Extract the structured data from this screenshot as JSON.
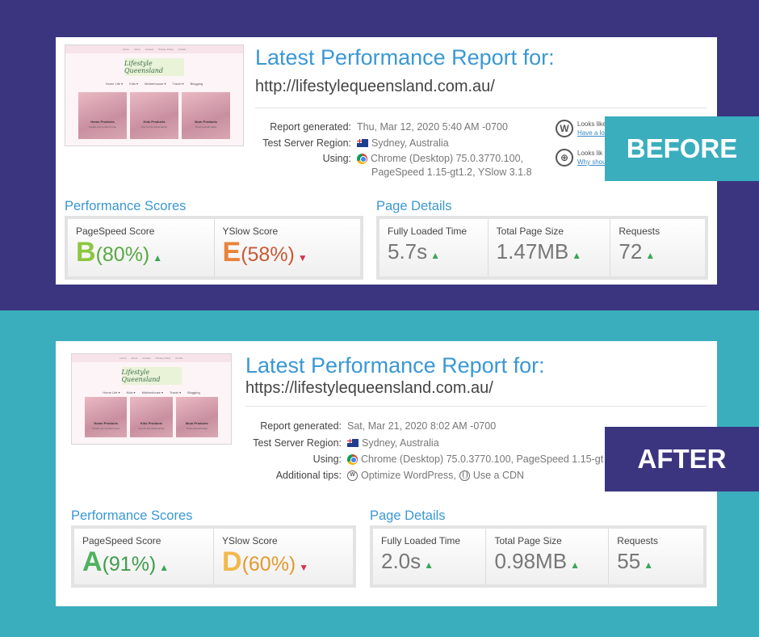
{
  "before": {
    "badge": "BEFORE",
    "title": "Latest Performance Report for:",
    "url": "http://lifestylequeensland.com.au/",
    "thumbnail": {
      "logo": "Lifestyle Queensland",
      "nav": [
        "Home",
        "About",
        "Contact",
        "Privacy Policy",
        "Cookie"
      ],
      "menu": [
        "Home Life ▾",
        "Kids ▾",
        "Motherhouse ▾",
        "Travel ▾",
        "Blogging"
      ],
      "tiles": [
        {
          "title": "Home Products",
          "desc": "Create your perfect home"
        },
        {
          "title": "Kids Products",
          "desc": "Fun for the whole family"
        },
        {
          "title": "Mum Products",
          "desc": "Treat yourself today"
        }
      ]
    },
    "meta": {
      "report_label": "Report generated:",
      "report_value": "Thu, Mar 12, 2020 5:40 AM -0700",
      "region_label": "Test Server Region:",
      "region_value": "Sydney, Australia",
      "using_label": "Using:",
      "using_value_line1": "Chrome (Desktop) 75.0.3770.100,",
      "using_value_line2": "PageSpeed 1.15-gt1.2, YSlow 3.1.8"
    },
    "side_tips": [
      {
        "icon": "wordpress-icon",
        "line1": "Looks like",
        "link": "Have a loo"
      },
      {
        "icon": "globe-icon",
        "line1": "Looks lik",
        "link": "Why shou"
      }
    ],
    "performance_scores": {
      "title": "Performance Scores",
      "pagespeed": {
        "label": "PageSpeed Score",
        "grade": "B",
        "pct": "(80%)",
        "trend": "up"
      },
      "yslow": {
        "label": "YSlow Score",
        "grade": "E",
        "pct": "(58%)",
        "trend": "down"
      }
    },
    "page_details": {
      "title": "Page Details",
      "load_time": {
        "label": "Fully Loaded Time",
        "value": "5.7s"
      },
      "page_size": {
        "label": "Total Page Size",
        "value": "1.47MB"
      },
      "requests": {
        "label": "Requests",
        "value": "72"
      }
    },
    "colors": {
      "grade_pagespeed": "#8cc63f",
      "grade_yslow": "#e8833a",
      "pct_pagespeed": "#5aa844",
      "pct_yslow": "#c75a35"
    }
  },
  "after": {
    "badge": "AFTER",
    "title": "Latest Performance Report for:",
    "url": "https://lifestylequeensland.com.au/",
    "thumbnail": {
      "logo": "Lifestyle Queensland",
      "nav": [
        "Home",
        "About",
        "Contact",
        "Privacy Policy",
        "Cookie"
      ],
      "menu": [
        "Home Life ▾",
        "Kids ▾",
        "Motherhouse ▾",
        "Travel ▾",
        "Blogging"
      ],
      "tiles": [
        {
          "title": "Home Products",
          "desc": "Create your perfect home"
        },
        {
          "title": "Kids Products",
          "desc": "Fun for the whole family"
        },
        {
          "title": "Mum Products",
          "desc": "Treat yourself today"
        }
      ]
    },
    "meta": {
      "report_label": "Report generated:",
      "report_value": "Sat, Mar 21, 2020 8:02 AM -0700",
      "region_label": "Test Server Region:",
      "region_value": "Sydney, Australia",
      "using_label": "Using:",
      "using_value_line1": "Chrome (Desktop) 75.0.3770.100, PageSpeed 1.15-gt",
      "tips_label": "Additional tips:",
      "tip1": "Optimize WordPress,",
      "tip2": "Use a CDN"
    },
    "performance_scores": {
      "title": "Performance Scores",
      "pagespeed": {
        "label": "PageSpeed Score",
        "grade": "A",
        "pct": "(91%)",
        "trend": "up"
      },
      "yslow": {
        "label": "YSlow Score",
        "grade": "D",
        "pct": "(60%)",
        "trend": "down"
      }
    },
    "page_details": {
      "title": "Page Details",
      "load_time": {
        "label": "Fully Loaded Time",
        "value": "2.0s"
      },
      "page_size": {
        "label": "Total Page Size",
        "value": "0.98MB"
      },
      "requests": {
        "label": "Requests",
        "value": "55"
      }
    },
    "colors": {
      "grade_pagespeed": "#4fb25d",
      "grade_yslow": "#f2b94a",
      "pct_pagespeed": "#3f9d4d",
      "pct_yslow": "#e39a2f"
    }
  },
  "arrows": {
    "up": "▲",
    "down": "▼"
  }
}
